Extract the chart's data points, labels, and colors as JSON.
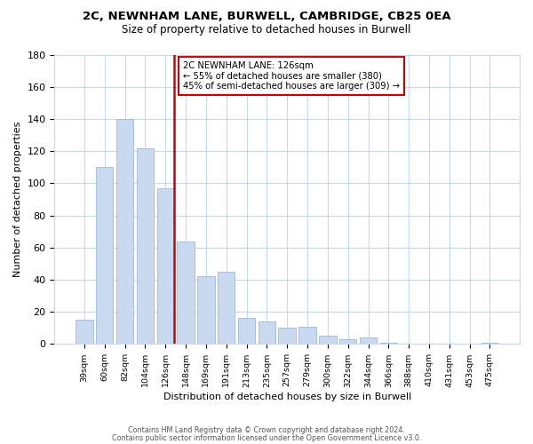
{
  "title_line1": "2C, NEWNHAM LANE, BURWELL, CAMBRIDGE, CB25 0EA",
  "title_line2": "Size of property relative to detached houses in Burwell",
  "xlabel": "Distribution of detached houses by size in Burwell",
  "ylabel": "Number of detached properties",
  "bar_labels": [
    "39sqm",
    "60sqm",
    "82sqm",
    "104sqm",
    "126sqm",
    "148sqm",
    "169sqm",
    "191sqm",
    "213sqm",
    "235sqm",
    "257sqm",
    "279sqm",
    "300sqm",
    "322sqm",
    "344sqm",
    "366sqm",
    "388sqm",
    "410sqm",
    "431sqm",
    "453sqm",
    "475sqm"
  ],
  "bar_values": [
    15,
    110,
    140,
    122,
    97,
    64,
    42,
    45,
    16,
    14,
    10,
    11,
    5,
    3,
    4,
    1,
    0,
    0,
    0,
    0,
    1
  ],
  "bar_color": "#c8d9f0",
  "bar_edge_color": "#a0b8d8",
  "vline_index": 4,
  "vline_color": "#cc0000",
  "annotation_text": "2C NEWNHAM LANE: 126sqm\n← 55% of detached houses are smaller (380)\n45% of semi-detached houses are larger (309) →",
  "ylim": [
    0,
    180
  ],
  "yticks": [
    0,
    20,
    40,
    60,
    80,
    100,
    120,
    140,
    160,
    180
  ],
  "footer_line1": "Contains HM Land Registry data © Crown copyright and database right 2024.",
  "footer_line2": "Contains public sector information licensed under the Open Government Licence v3.0.",
  "background_color": "#ffffff",
  "grid_color": "#c8d8ec"
}
